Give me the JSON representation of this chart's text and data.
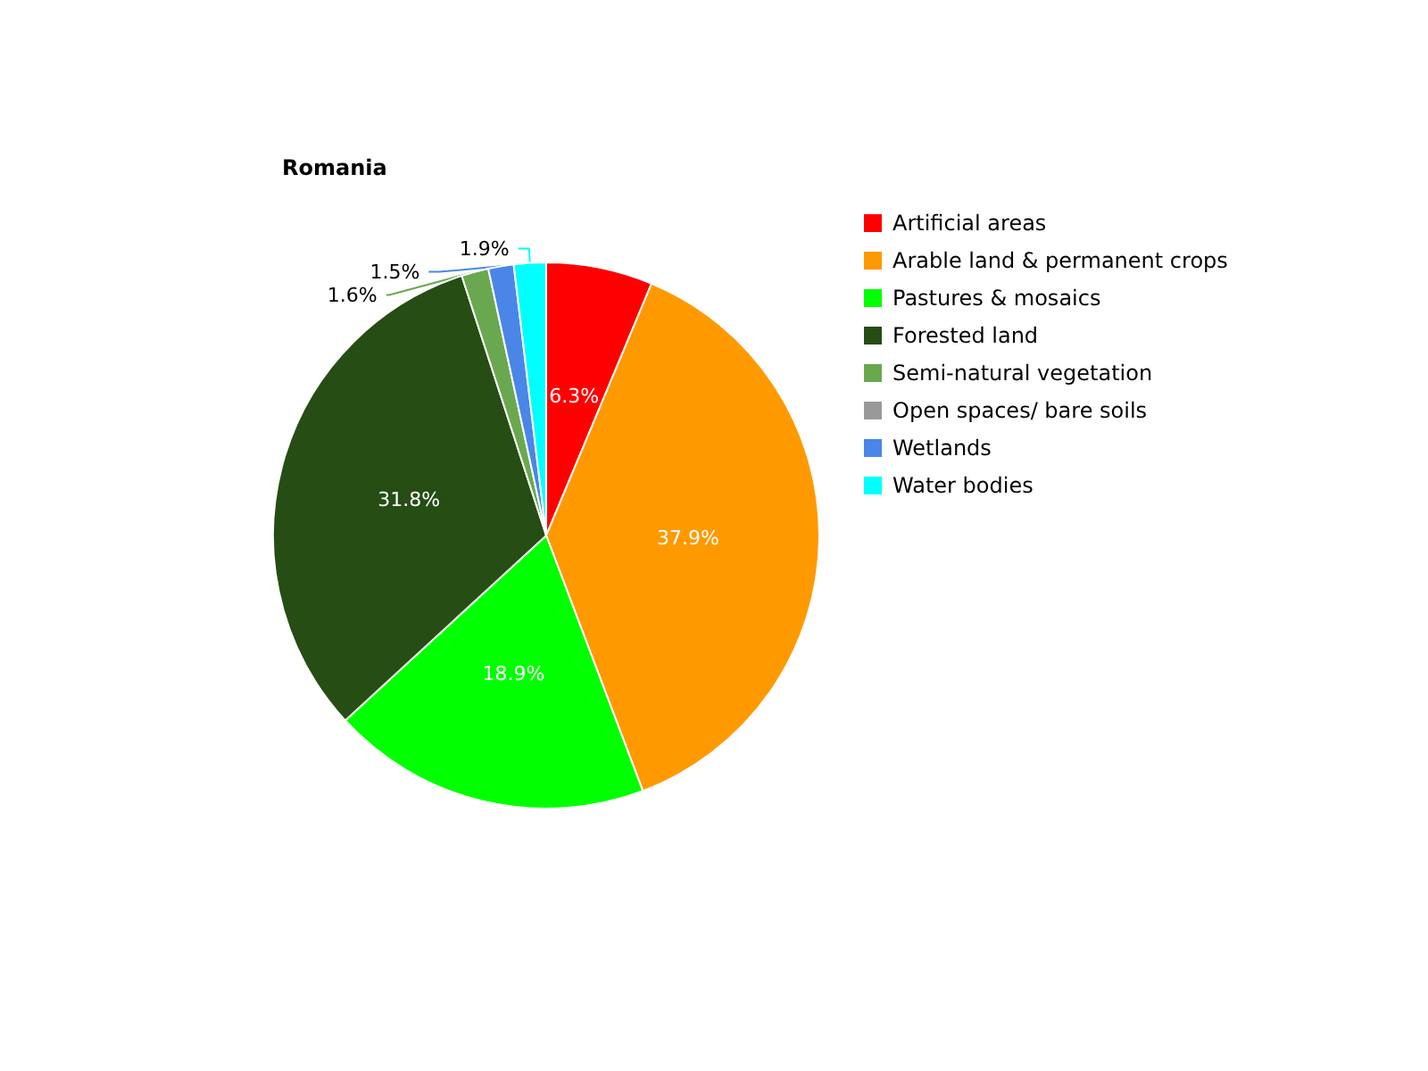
{
  "chart_data": {
    "type": "pie",
    "title": "Romania",
    "categories": [
      "Artificial areas",
      "Arable land & permanent crops",
      "Pastures & mosaics",
      "Forested land",
      "Semi-natural vegetation",
      "Open spaces/ bare soils",
      "Wetlands",
      "Water bodies"
    ],
    "values": [
      6.3,
      37.9,
      18.9,
      31.8,
      1.6,
      null,
      1.5,
      1.9
    ],
    "value_labels": [
      "6.3%",
      "37.9%",
      "18.9%",
      "31.8%",
      "1.6%",
      null,
      "1.5%",
      "1.9%"
    ],
    "colors": [
      "#ff0000",
      "#ff9900",
      "#00ff00",
      "#264d14",
      "#6aa84f",
      "#999999",
      "#4a86e8",
      "#00ffff"
    ],
    "legend": "right"
  }
}
